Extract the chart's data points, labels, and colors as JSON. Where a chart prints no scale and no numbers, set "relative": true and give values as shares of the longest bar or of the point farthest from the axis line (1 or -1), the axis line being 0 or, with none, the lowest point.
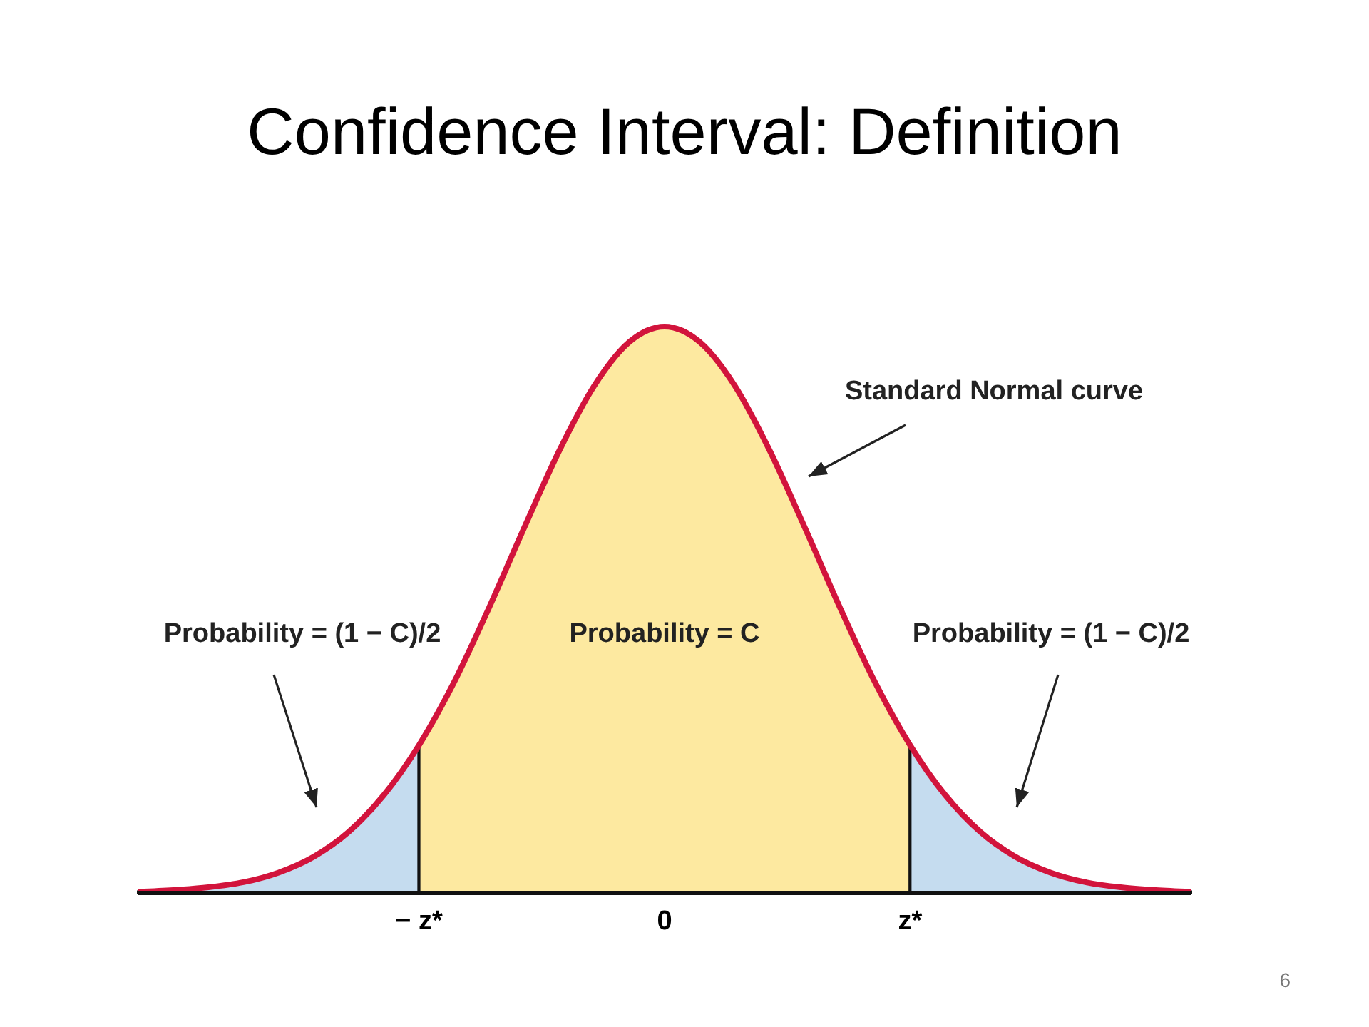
{
  "chart_data": {
    "type": "area",
    "title": "Confidence Interval: Definition",
    "relative": true,
    "categories": [
      null,
      null,
      null,
      null,
      null,
      null,
      null,
      null,
      "− z*",
      null,
      null,
      null,
      null,
      null,
      null,
      "0",
      null,
      null,
      null,
      null,
      null,
      null,
      "z*",
      null,
      null,
      null,
      null,
      null,
      null,
      null,
      null
    ],
    "series": [
      {
        "color": "#c5dcef",
        "values": [
          0.002,
          0.005,
          0.01,
          0.019,
          0.036,
          0.064,
          0.108,
          0.173,
          0.261,
          null,
          null,
          null,
          null,
          null,
          null,
          null,
          null,
          null,
          null,
          null,
          null,
          null,
          null,
          null,
          null,
          null,
          null,
          null,
          null,
          null,
          null
        ]
      },
      {
        "color": "#fde9a0",
        "values": [
          null,
          null,
          null,
          null,
          null,
          null,
          null,
          null,
          0.261,
          0.372,
          0.504,
          0.645,
          0.781,
          0.896,
          0.973,
          1,
          0.973,
          0.896,
          0.781,
          0.645,
          0.504,
          0.372,
          0.261,
          null,
          null,
          null,
          null,
          null,
          null,
          null,
          null
        ]
      },
      {
        "color": "#c5dcef",
        "values": [
          null,
          null,
          null,
          null,
          null,
          null,
          null,
          null,
          null,
          null,
          null,
          null,
          null,
          null,
          null,
          null,
          null,
          null,
          null,
          null,
          null,
          null,
          0.261,
          0.173,
          0.108,
          0.064,
          0.036,
          0.019,
          0.01,
          0.005,
          0.002
        ]
      },
      {
        "type": "line",
        "color": "#d2143c",
        "values": [
          0.002,
          0.005,
          0.01,
          0.019,
          0.036,
          0.064,
          0.108,
          0.173,
          0.261,
          0.372,
          0.504,
          0.645,
          0.781,
          0.896,
          0.973,
          1,
          0.973,
          0.896,
          0.781,
          0.645,
          0.504,
          0.372,
          0.261,
          0.173,
          0.108,
          0.064,
          0.036,
          0.019,
          0.01,
          0.005,
          0.002
        ]
      }
    ],
    "annotations": [
      "Standard Normal curve",
      "Probability = (1 − C)/2",
      "Probability = C",
      "Probability = (1 − C)/2",
      "6"
    ]
  }
}
